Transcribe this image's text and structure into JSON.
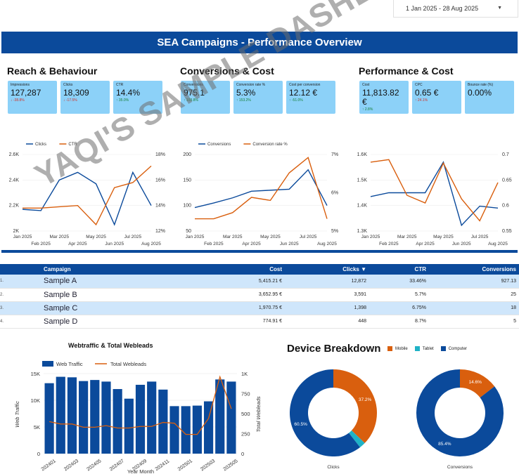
{
  "date_range": {
    "value": "1 Jan 2025 - 28 Aug 2025"
  },
  "page_title": "SEA Campaigns - Performance Overview",
  "watermark": "YAQI'S SAMPLE DASHBOARD",
  "colors": {
    "primary": "#0b4a9b",
    "secondary": "#d95f0e",
    "kpi_bg": "#8cd1f8",
    "tablet": "#1fb2c6",
    "up": "#17803a",
    "down": "#d0342c"
  },
  "sections": {
    "reach": {
      "title": "Reach & Behaviour",
      "kpis": [
        {
          "label": "Impressions",
          "value": "127,287",
          "delta": "↓ -38.8%",
          "dir": "down"
        },
        {
          "label": "Clicks",
          "value": "18,309",
          "delta": "↓ -17.5%",
          "dir": "down"
        },
        {
          "label": "CTR",
          "value": "14.4%",
          "delta": "↑ 35.0%",
          "dir": "up"
        }
      ],
      "chart": {
        "type": "line",
        "legend": [
          "Clicks",
          "CTR"
        ],
        "x": [
          "Jan 2025",
          "Feb 2025",
          "Mar 2025",
          "Apr 2025",
          "May 2025",
          "Jun 2025",
          "Jul 2025",
          "Aug 2025"
        ],
        "x_labels_top": [
          "Jan 2025",
          "Mar 2025",
          "May 2025",
          "Jul 2025"
        ],
        "x_labels_bottom": [
          "Feb 2025",
          "Apr 2025",
          "Jun 2025",
          "Aug 2025"
        ],
        "left_ticks": [
          "2.6K",
          "2.4K",
          "2.2K",
          "2K"
        ],
        "right_ticks": [
          "18%",
          "16%",
          "14%",
          "12%"
        ],
        "left_range": [
          2000,
          2600
        ],
        "right_range": [
          12,
          18
        ],
        "series": [
          {
            "name": "Clicks",
            "axis": "left",
            "values": [
              2170,
              2160,
              2400,
              2460,
              2370,
              2050,
              2460,
              2200
            ]
          },
          {
            "name": "CTR",
            "axis": "right",
            "values": [
              13.8,
              13.8,
              13.9,
              14.0,
              12.5,
              15.4,
              15.8,
              17.1
            ]
          }
        ]
      }
    },
    "conversions": {
      "title": "Conversions & Cost",
      "kpis": [
        {
          "label": "Conversions",
          "value": "975.1",
          "delta": "↑ 109.8%",
          "dir": "up"
        },
        {
          "label": "Conversion rate %",
          "value": "5.3%",
          "delta": "↑ 153.2%",
          "dir": "up"
        },
        {
          "label": "Cost per conversion",
          "value": "12.12 €",
          "delta": "↑ -51.0%",
          "dir": "up"
        }
      ],
      "chart": {
        "type": "line",
        "legend": [
          "Conversions",
          "Conversion rate %"
        ],
        "x": [
          "Jan 2025",
          "Feb 2025",
          "Mar 2025",
          "Apr 2025",
          "May 2025",
          "Jun 2025",
          "Jul 2025",
          "Aug 2025"
        ],
        "x_labels_top": [
          "Jan 2025",
          "Mar 2025",
          "May 2025",
          "Jul 2025"
        ],
        "x_labels_bottom": [
          "Feb 2025",
          "Apr 2025",
          "Jun 2025",
          "Aug 2025"
        ],
        "left_ticks": [
          "200",
          "150",
          "100",
          "50"
        ],
        "right_ticks": [
          "7%",
          "6%",
          "5%"
        ],
        "left_range": [
          50,
          200
        ],
        "right_range": [
          4.5,
          7
        ],
        "series": [
          {
            "name": "Conversions",
            "axis": "left",
            "values": [
              96,
              105,
              115,
              128,
              130,
              132,
              170,
              100
            ]
          },
          {
            "name": "Conversion rate %",
            "axis": "right",
            "values": [
              4.9,
              4.9,
              5.1,
              5.6,
              5.5,
              6.4,
              6.9,
              4.9
            ]
          }
        ]
      }
    },
    "performance": {
      "title": "Performance & Cost",
      "kpis": [
        {
          "label": "Cost",
          "value": "11,813.82 €",
          "delta": "↑ 2.8%",
          "dir": "up"
        },
        {
          "label": "CPC",
          "value": "0.65 €",
          "delta": "↑ 24.1%",
          "dir": "down"
        },
        {
          "label": "Bounce rate (%)",
          "value": "0.00%",
          "delta": "",
          "dir": "up"
        }
      ],
      "chart": {
        "type": "line",
        "x": [
          "Jan 2025",
          "Feb 2025",
          "Mar 2025",
          "Apr 2025",
          "May 2025",
          "Jun 2025",
          "Jul 2025",
          "Aug 2025"
        ],
        "x_labels_top": [
          "Jan 2025",
          "Mar 2025",
          "May 2025",
          "Jul 2025"
        ],
        "x_labels_bottom": [
          "Feb 2025",
          "Apr 2025",
          "Jun 2025",
          "Aug 2025"
        ],
        "left_ticks": [
          "1.6K",
          "1.5K",
          "1.4K",
          "1.3K"
        ],
        "right_ticks": [
          "0.7",
          "0.65",
          "0.6",
          "0.55"
        ],
        "left_range": [
          1300,
          1700
        ],
        "right_range": [
          0.55,
          0.7
        ],
        "series": [
          {
            "name": "Cost",
            "axis": "left",
            "values": [
              1480,
              1500,
              1500,
              1500,
              1660,
              1330,
              1430,
              1420
            ]
          },
          {
            "name": "CPC",
            "axis": "right",
            "values": [
              0.685,
              0.69,
              0.62,
              0.605,
              0.683,
              0.613,
              0.57,
              0.645
            ]
          }
        ]
      }
    }
  },
  "campaign_table": {
    "columns": [
      "Campaign",
      "Cost",
      "Clicks ▼",
      "CTR",
      "Conversions"
    ],
    "rows": [
      {
        "idx": "1.",
        "name": "Sample A",
        "cost": "5,415.21 €",
        "clicks": "12,872",
        "ctr": "33.46%",
        "conversions": "927.13"
      },
      {
        "idx": "2.",
        "name": "Sample B",
        "cost": "3,652.95 €",
        "clicks": "3,591",
        "ctr": "5.7%",
        "conversions": "25"
      },
      {
        "idx": "3.",
        "name": "Sample C",
        "cost": "1,970.75 €",
        "clicks": "1,398",
        "ctr": "6.75%",
        "conversions": "18"
      },
      {
        "idx": "4.",
        "name": "Sample D",
        "cost": "774.91 €",
        "clicks": "448",
        "ctr": "8.7%",
        "conversions": "5"
      }
    ]
  },
  "webtraffic": {
    "title": "Webtraffic & Total Webleads",
    "legend": [
      "Web Traffic",
      "Total Webleads"
    ],
    "left_ticks": [
      "15K",
      "10K",
      "5K",
      "0"
    ],
    "right_ticks": [
      "1K",
      "750",
      "500",
      "250",
      "0"
    ],
    "y_left_label": "Web Traffic",
    "y_right_label": "Total Webleads",
    "x_title": "Year Month",
    "x_labels": [
      "202401",
      "202403",
      "202405",
      "202407",
      "202409",
      "202411",
      "202501",
      "202503",
      "202505"
    ],
    "chart_data": {
      "type": "bar",
      "categories": [
        "202401",
        "202402",
        "202403",
        "202404",
        "202405",
        "202406",
        "202407",
        "202408",
        "202409",
        "202410",
        "202411",
        "202412",
        "202501",
        "202502",
        "202503",
        "202504",
        "202505"
      ],
      "series": [
        {
          "name": "Web Traffic",
          "axis": "left",
          "values": [
            13200,
            14400,
            14300,
            13600,
            13800,
            13500,
            12100,
            10300,
            12900,
            13500,
            12000,
            8900,
            8900,
            9000,
            9800,
            13900,
            13500
          ]
        },
        {
          "name": "Total Webleads",
          "axis": "right",
          "values": [
            400,
            370,
            370,
            330,
            330,
            350,
            320,
            320,
            340,
            340,
            390,
            380,
            240,
            240,
            440,
            960,
            560
          ]
        }
      ],
      "ylim_left": [
        0,
        15000
      ],
      "ylim_right": [
        0,
        1000
      ]
    }
  },
  "device": {
    "title": "Device Breakdown",
    "legend": [
      "Mobile",
      "Tablet",
      "Computer"
    ],
    "charts": [
      {
        "label": "Clicks",
        "slices": [
          {
            "name": "Mobile",
            "value": 37.2,
            "text": "37.2%"
          },
          {
            "name": "Tablet",
            "value": 2.3,
            "text": ""
          },
          {
            "name": "Computer",
            "value": 60.5,
            "text": "60.5%"
          }
        ]
      },
      {
        "label": "Conversions",
        "slices": [
          {
            "name": "Mobile",
            "value": 14.6,
            "text": "14.6%"
          },
          {
            "name": "Tablet",
            "value": 0,
            "text": ""
          },
          {
            "name": "Computer",
            "value": 85.4,
            "text": "85.4%"
          }
        ]
      }
    ]
  }
}
